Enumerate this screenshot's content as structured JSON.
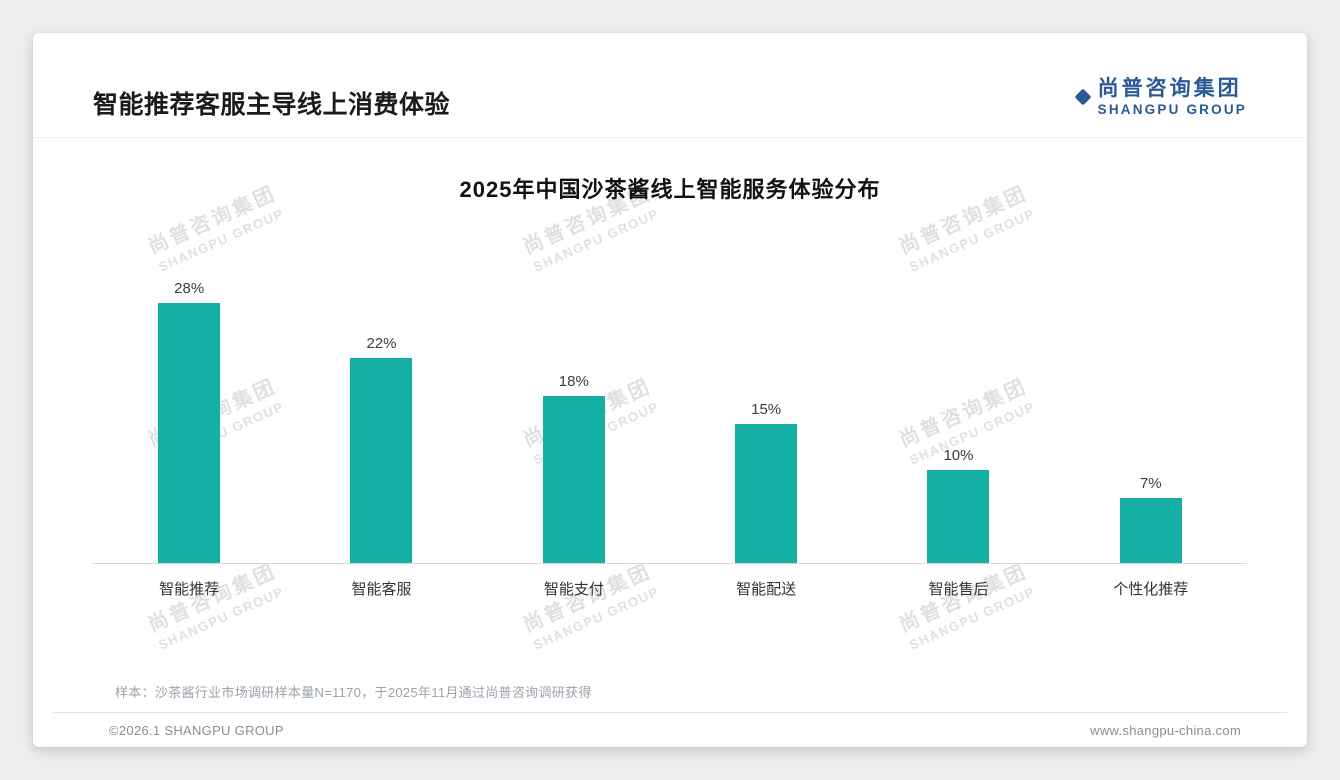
{
  "page": {
    "title": "智能推荐客服主导线上消费体验",
    "footnote": "样本：沙茶酱行业市场调研样本量N=1170，于2025年11月通过尚普咨询调研获得",
    "copyright": "©2026.1 SHANGPU GROUP",
    "website": "www.shangpu-china.com"
  },
  "logo": {
    "cn": "尚普咨询集团",
    "en": "SHANGPU GROUP"
  },
  "watermark": {
    "cn": "尚普咨询集团",
    "en": "SHANGPU GROUP"
  },
  "chart_data": {
    "type": "bar",
    "title": "2025年中国沙茶酱线上智能服务体验分布",
    "categories": [
      "智能推荐",
      "智能客服",
      "智能支付",
      "智能配送",
      "智能售后",
      "个性化推荐"
    ],
    "values": [
      28,
      22,
      18,
      15,
      10,
      7
    ],
    "value_labels": [
      "28%",
      "22%",
      "18%",
      "15%",
      "10%",
      "7%"
    ],
    "xlabel": "",
    "ylabel": "",
    "ylim": [
      0,
      30
    ],
    "grid": false,
    "legend": false,
    "bar_color": "#15AFA5"
  },
  "colors": {
    "bar_teal": "#15AFA5",
    "logo_blue": "#2A5A94",
    "title_text": "#1B1B1B",
    "footnote_gray": "#9AA3AD"
  }
}
